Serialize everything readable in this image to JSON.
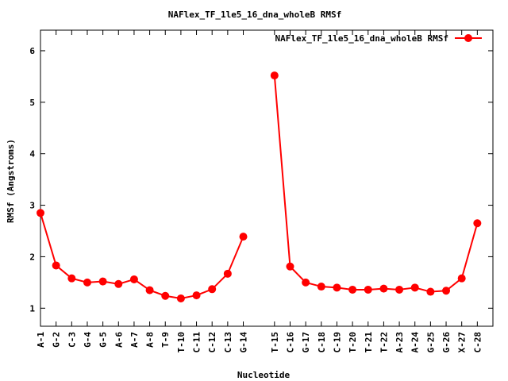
{
  "chart_data": {
    "type": "line",
    "title": "NAFlex_TF_1le5_16_dna_wholeB RMSf",
    "xlabel": "Nucleotide",
    "ylabel": "RMSf (Angstroms)",
    "ylim": [
      0.65,
      6.4
    ],
    "yticks": [
      1,
      2,
      3,
      4,
      5,
      6
    ],
    "grid": false,
    "legend_position": "top-right",
    "series": [
      {
        "name": "NAFlex_TF_1le5_16_dna_wholeB RMSf",
        "color": "#ff0000",
        "segments": [
          {
            "labels": [
              "A-1",
              "G-2",
              "C-3",
              "G-4",
              "G-5",
              "A-6",
              "A-7",
              "A-8",
              "T-9",
              "T-10",
              "C-11",
              "C-12",
              "C-13",
              "G-14"
            ],
            "values": [
              2.85,
              1.83,
              1.58,
              1.5,
              1.52,
              1.47,
              1.56,
              1.35,
              1.24,
              1.19,
              1.25,
              1.37,
              1.67,
              2.39
            ]
          },
          {
            "labels": [
              "T-15",
              "C-16",
              "G-17",
              "C-18",
              "C-19",
              "T-20",
              "T-21",
              "T-22",
              "A-23",
              "A-24",
              "G-25",
              "G-26",
              "X-27",
              "C-28"
            ],
            "values": [
              5.52,
              1.81,
              1.5,
              1.42,
              1.4,
              1.36,
              1.36,
              1.38,
              1.36,
              1.4,
              1.32,
              1.34,
              1.58,
              2.65
            ]
          }
        ]
      }
    ]
  }
}
